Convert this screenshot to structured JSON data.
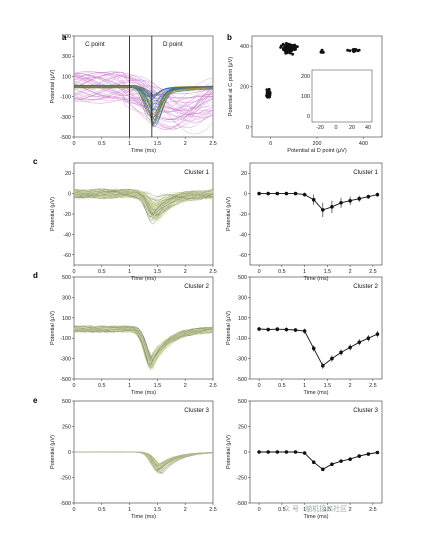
{
  "panels": {
    "a": "a",
    "b": "b",
    "c": "c",
    "d": "d",
    "e": "e"
  },
  "watermark": "众 号 · 脑机接口社区",
  "chart_data": [
    {
      "id": "a",
      "type": "line",
      "title": "",
      "ann": [
        "C point",
        "D point"
      ],
      "xlabel": "Time (ms)",
      "ylabel": "Potential (μV)",
      "xlim": [
        0,
        2.5
      ],
      "ylim": [
        -500,
        500
      ],
      "xticks": [
        0,
        0.5,
        1,
        1.5,
        2,
        2.5
      ],
      "yticks": [
        500,
        300,
        100,
        -100,
        -300,
        -500
      ],
      "vlines": [
        1.0,
        1.4
      ],
      "series": [
        {
          "name": "",
          "values": [
            0,
            0,
            0,
            0,
            0,
            -60,
            -250,
            -120,
            -40,
            -10,
            0
          ]
        }
      ]
    },
    {
      "id": "b",
      "type": "scatter",
      "xlabel": "Potential at D point (μV)",
      "ylabel": "Potential at C point (μV)",
      "xlim": [
        -80,
        480
      ],
      "ylim": [
        -50,
        450
      ],
      "xticks": [
        0,
        200,
        400
      ],
      "yticks": [
        0,
        200,
        400
      ],
      "inset": {
        "xlim": [
          -30,
          45
        ],
        "ylim": [
          -30,
          230
        ],
        "xticks": [
          -20,
          0,
          20,
          40
        ],
        "yticks": [
          0,
          100,
          200
        ]
      }
    },
    {
      "id": "c",
      "type": "line",
      "title": "Cluster 1",
      "xlabel": "Time (ms)",
      "ylabel": "Potential (μV)",
      "xlim": [
        0,
        2.5
      ],
      "ylim": [
        -70,
        30
      ],
      "xticks": [
        0,
        0.5,
        1.0,
        1.5,
        2.0,
        2.5
      ],
      "yticks": [
        20,
        0,
        -20,
        -40,
        -60
      ]
    },
    {
      "id": "c2",
      "type": "line",
      "title": "Cluster 1",
      "xlabel": "Time (ms)",
      "ylabel": "Potential (μV)",
      "xlim": [
        -0.2,
        2.7
      ],
      "ylim": [
        -70,
        30
      ],
      "xticks": [
        0,
        0.5,
        1.0,
        1.5,
        2.0,
        2.5
      ],
      "yticks": [
        20,
        0,
        -20,
        -40,
        -60
      ],
      "x": [
        0,
        0.2,
        0.4,
        0.6,
        0.8,
        1.0,
        1.2,
        1.4,
        1.6,
        1.8,
        2.0,
        2.2,
        2.4,
        2.6
      ],
      "values": [
        0,
        0,
        0,
        0,
        0,
        -1,
        -6,
        -16,
        -13,
        -9,
        -7,
        -5,
        -3,
        -1
      ],
      "errors": [
        1,
        1,
        1,
        1,
        1,
        2,
        5,
        7,
        6,
        5,
        4,
        3,
        2,
        2
      ]
    },
    {
      "id": "d",
      "type": "line",
      "title": "Cluster 2",
      "xlabel": "Time (ms)",
      "ylabel": "Potential (μV)",
      "xlim": [
        0,
        2.5
      ],
      "ylim": [
        -500,
        500
      ],
      "xticks": [
        0,
        0.5,
        1.0,
        1.5,
        2.0,
        2.5
      ],
      "yticks": [
        500,
        300,
        100,
        -100,
        -300,
        -500
      ]
    },
    {
      "id": "d2",
      "type": "line",
      "title": "Cluster 2",
      "xlabel": "Time (ms)",
      "ylabel": "Potential (μV)",
      "xlim": [
        -0.2,
        2.7
      ],
      "ylim": [
        -500,
        500
      ],
      "xticks": [
        0,
        0.5,
        1.0,
        1.5,
        2.0,
        2.5
      ],
      "yticks": [
        500,
        300,
        100,
        -100,
        -300,
        -500
      ],
      "x": [
        0,
        0.2,
        0.4,
        0.6,
        0.8,
        1.0,
        1.2,
        1.4,
        1.6,
        1.8,
        2.0,
        2.2,
        2.4,
        2.6
      ],
      "values": [
        -10,
        -15,
        -12,
        -15,
        -20,
        -30,
        -200,
        -370,
        -300,
        -240,
        -190,
        -140,
        -100,
        -60
      ],
      "errors": [
        20,
        20,
        20,
        20,
        20,
        25,
        30,
        30,
        30,
        30,
        30,
        30,
        30,
        30
      ]
    },
    {
      "id": "e",
      "type": "line",
      "title": "Cluster 3",
      "xlabel": "Time (ms)",
      "ylabel": "Potential (μV)",
      "xlim": [
        0,
        2.5
      ],
      "ylim": [
        -500,
        500
      ],
      "xticks": [
        0,
        0.5,
        1.0,
        1.5,
        2.0,
        2.5
      ],
      "yticks": [
        500,
        250,
        0,
        -250,
        -500
      ]
    },
    {
      "id": "e2",
      "type": "line",
      "title": "Cluster 3",
      "xlabel": "Time (ms)",
      "ylabel": "Potential (μV)",
      "xlim": [
        -0.2,
        2.7
      ],
      "ylim": [
        -500,
        500
      ],
      "xticks": [
        0,
        0.5,
        1.0,
        1.5,
        2.0,
        2.5
      ],
      "yticks": [
        500,
        250,
        0,
        -250,
        -500
      ],
      "x": [
        0,
        0.2,
        0.4,
        0.6,
        0.8,
        1.0,
        1.2,
        1.4,
        1.6,
        1.8,
        2.0,
        2.2,
        2.4,
        2.6
      ],
      "values": [
        0,
        0,
        0,
        0,
        0,
        -10,
        -100,
        -170,
        -120,
        -90,
        -70,
        -40,
        -20,
        -5
      ],
      "errors": [
        5,
        5,
        5,
        5,
        5,
        5,
        8,
        10,
        8,
        8,
        6,
        6,
        5,
        5
      ]
    }
  ]
}
